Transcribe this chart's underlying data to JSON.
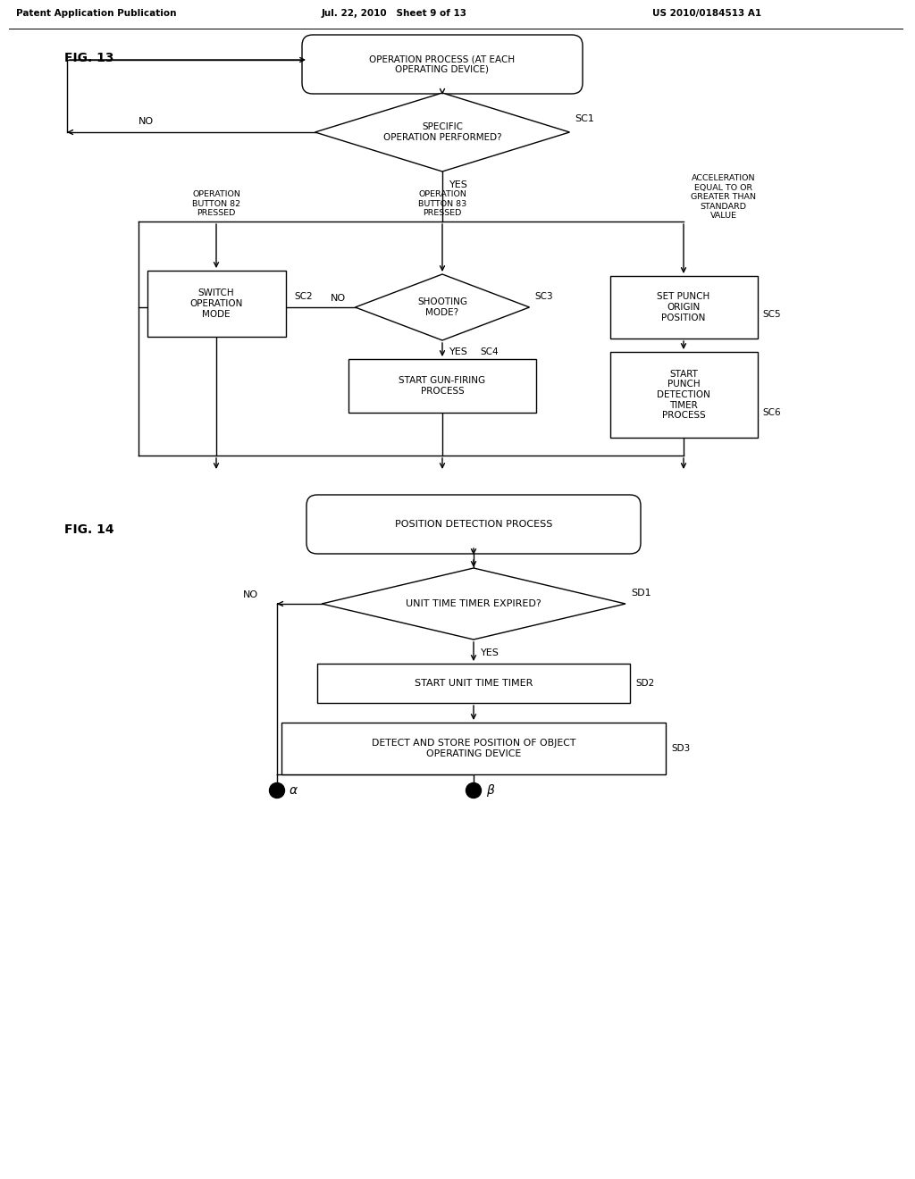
{
  "header_left": "Patent Application Publication",
  "header_mid": "Jul. 22, 2010   Sheet 9 of 13",
  "header_right": "US 2010/0184513 A1",
  "fig13_label": "FIG. 13",
  "fig14_label": "FIG. 14",
  "background_color": "#ffffff",
  "text_color": "#000000",
  "line_color": "#000000",
  "fig13": {
    "start_text": "OPERATION PROCESS (AT EACH\nOPERATING DEVICE)",
    "diamond1_text": "SPECIFIC\nOPERATION PERFORMED?",
    "diamond1_label": "SC1",
    "no_label": "NO",
    "yes_label": "YES",
    "branch_left_label": "OPERATION\nBUTTON 82\nPRESSED",
    "branch_mid_label": "OPERATION\nBUTTON 83\nPRESSED",
    "branch_right_label": "ACCELERATION\nEQUAL TO OR\nGREATER THAN\nSTANDARD\nVALUE",
    "box_sc2_text": "SWITCH\nOPERATION\nMODE",
    "box_sc2_label": "SC2",
    "diamond2_text": "SHOOTING\nMODE?",
    "diamond2_label": "SC3",
    "diamond2_no": "NO",
    "diamond2_yes": "YES",
    "box_sc4_text": "START GUN-FIRING\nPROCESS",
    "box_sc4_label": "SC4",
    "box_sc5_text": "SET PUNCH\nORIGIN\nPOSITION",
    "box_sc5_label": "SC5",
    "box_sc6_text": "START\nPUNCH\nDETECTION\nTIMER\nPROCESS",
    "box_sc6_label": "SC6"
  },
  "fig14": {
    "start_text": "POSITION DETECTION PROCESS",
    "diamond_text": "UNIT TIME TIMER EXPIRED?",
    "diamond_label": "SD1",
    "no_label": "NO",
    "yes_label": "YES",
    "box_sd2_text": "START UNIT TIME TIMER",
    "box_sd2_label": "SD2",
    "box_sd3_text": "DETECT AND STORE POSITION OF OBJECT\nOPERATING DEVICE",
    "box_sd3_label": "SD3",
    "alpha_label": "α",
    "beta_label": "β"
  }
}
